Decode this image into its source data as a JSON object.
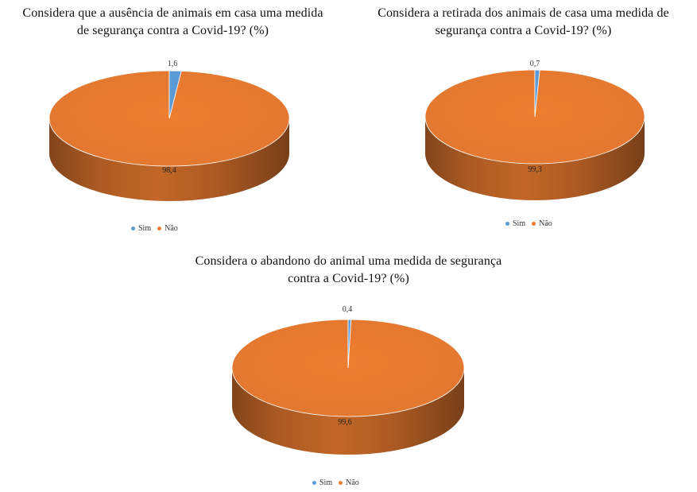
{
  "chart_data": [
    {
      "type": "pie",
      "title_lines": [
        "Considera que a ausência de animais em casa uma medida",
        "de segurança  contra a Covid-19?  (%)"
      ],
      "categories": [
        "Sim",
        "Não"
      ],
      "values": [
        1.6,
        98.4
      ],
      "data_labels": [
        "1,6",
        "98,4"
      ],
      "legend": "bottom",
      "colors": [
        "#5B9BD5",
        "#ED7D31"
      ]
    },
    {
      "type": "pie",
      "title_lines": [
        "Considera a retirada dos animais de casa uma medida de",
        "segurança  contra a Covid-19?  (%)"
      ],
      "categories": [
        "Sim",
        "Não"
      ],
      "values": [
        0.7,
        99.3
      ],
      "data_labels": [
        "0,7",
        "99,3"
      ],
      "legend": "bottom",
      "colors": [
        "#5B9BD5",
        "#ED7D31"
      ]
    },
    {
      "type": "pie",
      "title_lines": [
        "Considera o abandono do animal uma medida de segurança",
        "contra a Covid-19?  (%)"
      ],
      "categories": [
        "Sim",
        "Não"
      ],
      "values": [
        0.4,
        99.6
      ],
      "data_labels": [
        "0,4",
        "99,6"
      ],
      "legend": "bottom",
      "colors": [
        "#5B9BD5",
        "#ED7D31"
      ]
    }
  ]
}
